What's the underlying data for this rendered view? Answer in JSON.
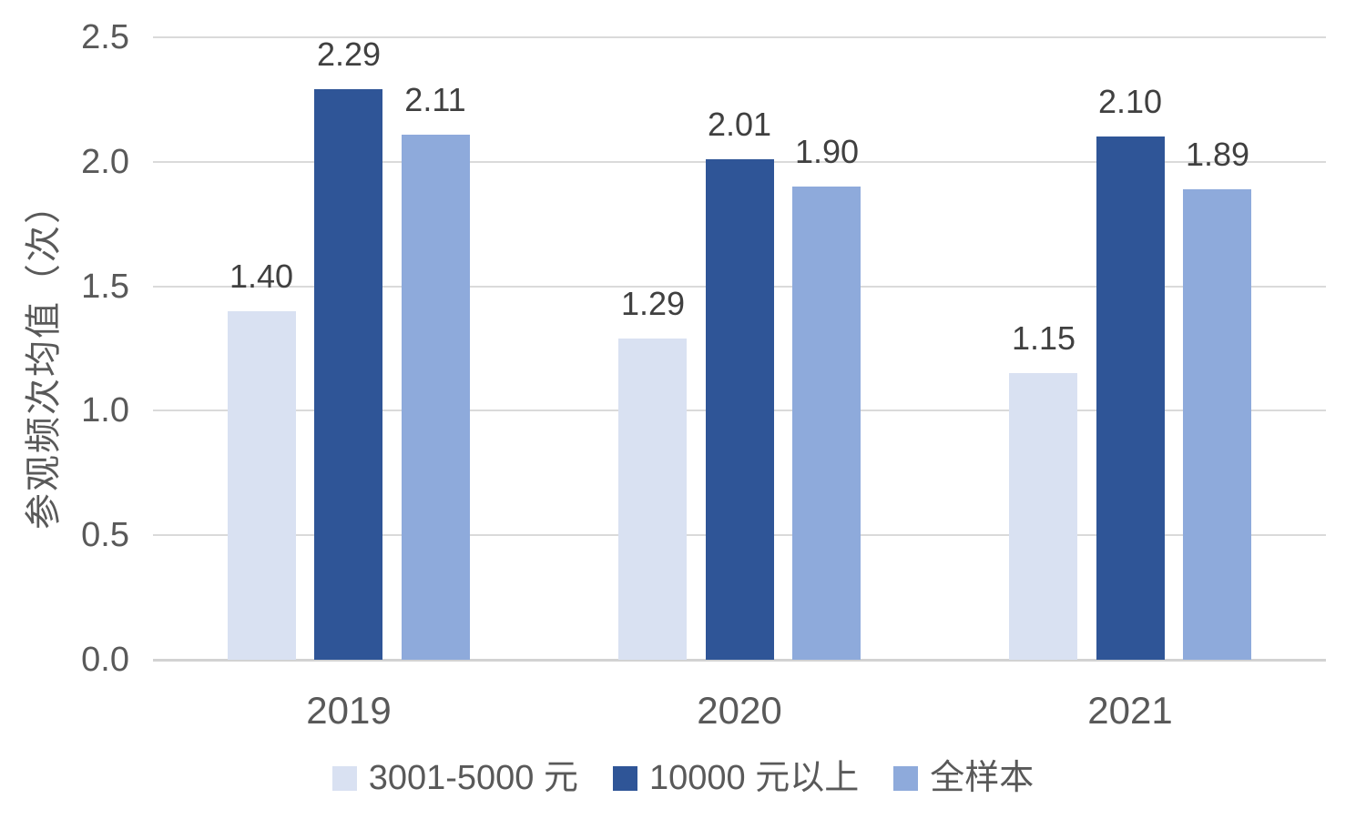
{
  "chart_data": {
    "type": "bar",
    "categories": [
      "2019",
      "2020",
      "2021"
    ],
    "series": [
      {
        "name": "3001-5000 元",
        "color": "#D9E1F2",
        "values": [
          1.4,
          1.29,
          1.15
        ],
        "labels": [
          "1.40",
          "1.29",
          "1.15"
        ]
      },
      {
        "name": "10000 元以上",
        "color": "#2F5597",
        "values": [
          2.29,
          2.01,
          2.1
        ],
        "labels": [
          "2.29",
          "2.01",
          "2.10"
        ]
      },
      {
        "name": "全样本",
        "color": "#8EAADB",
        "values": [
          2.11,
          1.9,
          1.89
        ],
        "labels": [
          "2.11",
          "1.90",
          "1.89"
        ]
      }
    ],
    "title": "",
    "xlabel": "",
    "ylabel": "参观频次均值（次）",
    "ylim": [
      0,
      2.5
    ],
    "yticks": [
      {
        "value": 2.5,
        "label": "2.5"
      },
      {
        "value": 2.0,
        "label": "2.0"
      },
      {
        "value": 1.5,
        "label": "1.5"
      },
      {
        "value": 1.0,
        "label": "1.0"
      },
      {
        "value": 0.5,
        "label": "0.5"
      },
      {
        "value": 0.0,
        "label": "0.0"
      }
    ],
    "grid": true,
    "legend_position": "bottom"
  },
  "colors": {
    "gridline": "#dadada",
    "axis_baseline": "#d2d2d2",
    "tick_text": "#595959",
    "value_label_text": "#404040"
  }
}
